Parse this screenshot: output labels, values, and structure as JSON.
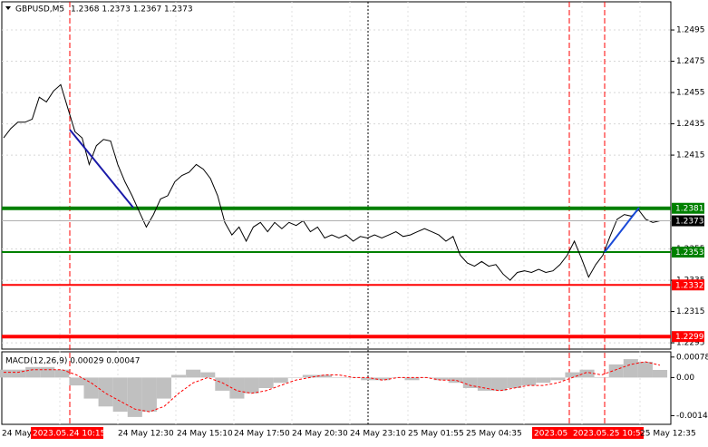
{
  "chart_data": [
    {
      "type": "line",
      "title": "GBPUSD,M5",
      "ohlc": "1.2368 1.2373 1.2367 1.2373",
      "color": "#000000",
      "grid": true,
      "values": [
        1.2426,
        1.2432,
        1.2436,
        1.2436,
        1.2438,
        1.2452,
        1.2449,
        1.2456,
        1.246,
        1.2445,
        1.243,
        1.2426,
        1.2409,
        1.2421,
        1.2425,
        1.2424,
        1.2409,
        1.2398,
        1.2389,
        1.2379,
        1.2369,
        1.2377,
        1.2387,
        1.2389,
        1.2398,
        1.2402,
        1.2404,
        1.2409,
        1.2406,
        1.24,
        1.2389,
        1.2372,
        1.2364,
        1.2369,
        1.236,
        1.2369,
        1.2372,
        1.2366,
        1.2372,
        1.2368,
        1.2372,
        1.237,
        1.2373,
        1.2366,
        1.2369,
        1.2362,
        1.2364,
        1.2362,
        1.2364,
        1.236,
        1.2363,
        1.2362,
        1.2364,
        1.2362,
        1.2364,
        1.2366,
        1.2363,
        1.2364,
        1.2366,
        1.2368,
        1.2366,
        1.2364,
        1.236,
        1.2363,
        1.2351,
        1.2346,
        1.2344,
        1.2347,
        1.2344,
        1.2345,
        1.2339,
        1.2335,
        1.234,
        1.2341,
        1.234,
        1.2342,
        1.234,
        1.2341,
        1.2345,
        1.2351,
        1.236,
        1.2349,
        1.2337,
        1.2345,
        1.2351,
        1.2363,
        1.2374,
        1.2377,
        1.2376,
        1.238,
        1.2374,
        1.2372,
        1.2373
      ],
      "ylim": [
        1.2291,
        1.2513
      ],
      "yticks": [
        1.2495,
        1.2475,
        1.2455,
        1.2435,
        1.2415,
        1.2355,
        1.2335,
        1.2315,
        1.2295
      ],
      "levels": [
        {
          "value": 1.2381,
          "color": "#008000",
          "width": 4
        },
        {
          "value": 1.2353,
          "color": "#008000",
          "width": 2
        },
        {
          "value": 1.2332,
          "color": "#ff0000",
          "width": 2
        },
        {
          "value": 1.2299,
          "color": "#ff0000",
          "width": 4
        }
      ],
      "last_price": 1.2373,
      "x_labels": [
        "24 May",
        "2023.05.24 10:15",
        "24 May 12:30",
        "24 May 15:10",
        "24 May 17:50",
        "24 May 20:30",
        "24 May 23:10",
        "25 May 01:55",
        "25 May 04:35",
        "2023.05",
        "2023.05.25 10:55",
        "25 May 12:35"
      ]
    },
    {
      "type": "macd",
      "title": "MACD(12,26,9) 0.00029 0.00047",
      "color": "#c0c0c0",
      "signal_color": "#ff0000",
      "values": [
        0.0003,
        0.0003,
        0.0004,
        0.0004,
        0.0003,
        -0.0003,
        -0.0008,
        -0.0011,
        -0.0013,
        -0.0015,
        -0.0013,
        -0.0008,
        0.0001,
        0.0003,
        0.0002,
        -0.0005,
        -0.0008,
        -0.0006,
        -0.0004,
        -0.0002,
        0.0,
        0.0001,
        0.0001,
        0.0,
        0.0,
        -0.0001,
        -0.0001,
        0.0,
        -0.0001,
        0.0,
        -0.0001,
        -0.0002,
        -0.0004,
        -0.0005,
        -0.0005,
        -0.0004,
        -0.0003,
        -0.0002,
        -0.0001,
        0.0002,
        0.0003,
        0.0,
        0.0005,
        0.0007,
        0.0006,
        0.00029
      ],
      "signal": [
        0.0002,
        0.0002,
        0.0003,
        0.0003,
        0.0003,
        0.0001,
        -0.0002,
        -0.0006,
        -0.0009,
        -0.0012,
        -0.0013,
        -0.0011,
        -0.0006,
        -0.0002,
        0.0,
        -0.0002,
        -0.0005,
        -0.0006,
        -0.0005,
        -0.0003,
        -0.0001,
        0.0,
        0.0001,
        0.0001,
        0.0,
        0.0,
        -0.0001,
        0.0,
        0.0,
        0.0,
        -0.0001,
        -0.0001,
        -0.0003,
        -0.0004,
        -0.0005,
        -0.0004,
        -0.0003,
        -0.0003,
        -0.0002,
        0.0,
        0.0002,
        0.0001,
        0.0003,
        0.0005,
        0.0006,
        0.00047
      ],
      "ylim": [
        -0.00178,
        0.00098
      ],
      "yticks": [
        0.00078,
        {
          "value": 0,
          "label": "0.00"
        },
        -0.00145
      ]
    }
  ]
}
